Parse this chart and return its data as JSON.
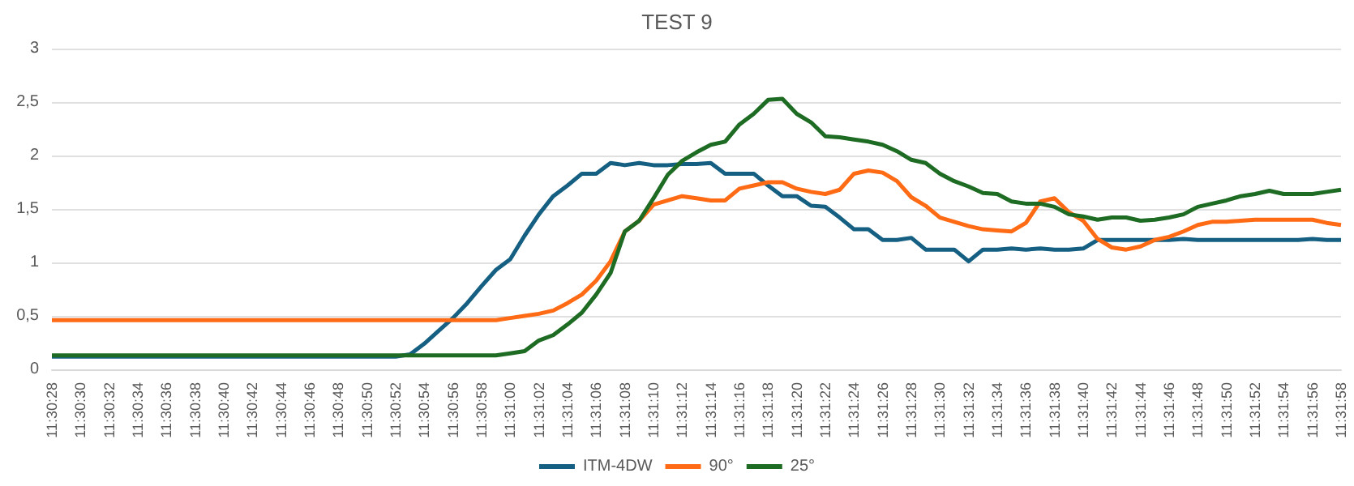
{
  "chart_data": {
    "type": "line",
    "title": "TEST 9",
    "categories": [
      "11:30:28",
      null,
      "11:30:30",
      null,
      "11:30:32",
      null,
      "11:30:34",
      null,
      "11:30:36",
      null,
      "11:30:38",
      null,
      "11:30:40",
      null,
      "11:30:42",
      null,
      "11:30:44",
      null,
      "11:30:46",
      null,
      "11:30:48",
      null,
      "11:30:50",
      null,
      "11:30:52",
      null,
      "11:30:54",
      null,
      "11:30:56",
      null,
      "11:30:58",
      null,
      "11:31:00",
      null,
      "11:31:02",
      null,
      "11:31:04",
      null,
      "11:31:06",
      null,
      "11:31:08",
      null,
      "11:31:10",
      null,
      "11:31:12",
      null,
      "11:31:14",
      null,
      "11:31:16",
      null,
      "11:31:18",
      null,
      "11:31:20",
      null,
      "11:31:22",
      null,
      "11:31:24",
      null,
      "11:31:26",
      null,
      "11:31:28",
      null,
      "11:31:30",
      null,
      "11:31:32",
      null,
      "11:31:34",
      null,
      "11:31:36",
      null,
      "11:31:38",
      null,
      "11:31:40",
      null,
      "11:31:42",
      null,
      "11:31:44",
      null,
      "11:31:46",
      null,
      "11:31:48",
      null,
      "11:31:50",
      null,
      "11:31:52",
      null,
      "11:31:54",
      null,
      "11:31:56",
      null,
      "11:31:58"
    ],
    "series": [
      {
        "name": "ITM-4DW",
        "color": "#156082",
        "values": [
          0.12,
          0.12,
          0.12,
          0.12,
          0.12,
          0.12,
          0.12,
          0.12,
          0.12,
          0.12,
          0.12,
          0.12,
          0.12,
          0.12,
          0.12,
          0.12,
          0.12,
          0.12,
          0.12,
          0.12,
          0.12,
          0.12,
          0.12,
          0.12,
          0.12,
          0.14,
          0.24,
          0.36,
          0.48,
          0.62,
          0.78,
          0.93,
          1.03,
          1.25,
          1.45,
          1.62,
          1.72,
          1.83,
          1.83,
          1.93,
          1.91,
          1.93,
          1.91,
          1.91,
          1.92,
          1.92,
          1.93,
          1.83,
          1.83,
          1.83,
          1.72,
          1.62,
          1.62,
          1.53,
          1.52,
          1.42,
          1.31,
          1.31,
          1.21,
          1.21,
          1.23,
          1.12,
          1.12,
          1.12,
          1.01,
          1.12,
          1.12,
          1.13,
          1.12,
          1.13,
          1.12,
          1.12,
          1.13,
          1.21,
          1.21,
          1.21,
          1.21,
          1.21,
          1.21,
          1.22,
          1.21,
          1.21,
          1.21,
          1.21,
          1.21,
          1.21,
          1.21,
          1.21,
          1.22,
          1.21,
          1.21
        ]
      },
      {
        "name": "90°",
        "color": "#ff6a14",
        "values": [
          0.46,
          0.46,
          0.46,
          0.46,
          0.46,
          0.46,
          0.46,
          0.46,
          0.46,
          0.46,
          0.46,
          0.46,
          0.46,
          0.46,
          0.46,
          0.46,
          0.46,
          0.46,
          0.46,
          0.46,
          0.46,
          0.46,
          0.46,
          0.46,
          0.46,
          0.46,
          0.46,
          0.46,
          0.46,
          0.46,
          0.46,
          0.46,
          0.48,
          0.5,
          0.52,
          0.55,
          0.62,
          0.7,
          0.83,
          1.01,
          1.29,
          1.39,
          1.54,
          1.58,
          1.62,
          1.6,
          1.58,
          1.58,
          1.69,
          1.72,
          1.75,
          1.75,
          1.69,
          1.66,
          1.64,
          1.68,
          1.83,
          1.86,
          1.84,
          1.76,
          1.61,
          1.53,
          1.42,
          1.38,
          1.34,
          1.31,
          1.3,
          1.29,
          1.37,
          1.57,
          1.6,
          1.47,
          1.39,
          1.22,
          1.14,
          1.12,
          1.15,
          1.21,
          1.24,
          1.29,
          1.35,
          1.38,
          1.38,
          1.39,
          1.4,
          1.4,
          1.4,
          1.4,
          1.4,
          1.37,
          1.35
        ]
      },
      {
        "name": "25°",
        "color": "#1e6b24",
        "values": [
          0.13,
          0.13,
          0.13,
          0.13,
          0.13,
          0.13,
          0.13,
          0.13,
          0.13,
          0.13,
          0.13,
          0.13,
          0.13,
          0.13,
          0.13,
          0.13,
          0.13,
          0.13,
          0.13,
          0.13,
          0.13,
          0.13,
          0.13,
          0.13,
          0.13,
          0.13,
          0.13,
          0.13,
          0.13,
          0.13,
          0.13,
          0.13,
          0.15,
          0.17,
          0.27,
          0.32,
          0.42,
          0.53,
          0.7,
          0.9,
          1.29,
          1.39,
          1.6,
          1.82,
          1.95,
          2.03,
          2.1,
          2.13,
          2.29,
          2.39,
          2.52,
          2.53,
          2.39,
          2.31,
          2.18,
          2.17,
          2.15,
          2.13,
          2.1,
          2.04,
          1.96,
          1.93,
          1.83,
          1.76,
          1.71,
          1.65,
          1.64,
          1.57,
          1.55,
          1.55,
          1.52,
          1.45,
          1.43,
          1.4,
          1.42,
          1.42,
          1.39,
          1.4,
          1.42,
          1.45,
          1.52,
          1.55,
          1.58,
          1.62,
          1.64,
          1.67,
          1.64,
          1.64,
          1.64,
          1.66,
          1.68
        ]
      }
    ],
    "ylim": [
      0,
      3
    ],
    "yticks": [
      0,
      {
        "value": 0.5,
        "label": "0,5"
      },
      1,
      {
        "value": 1.5,
        "label": "1,5"
      },
      2,
      {
        "value": 2.5,
        "label": "2,5"
      },
      3
    ],
    "grid": "y",
    "legend": "bottom",
    "marker": "none",
    "line_style": "solid"
  }
}
